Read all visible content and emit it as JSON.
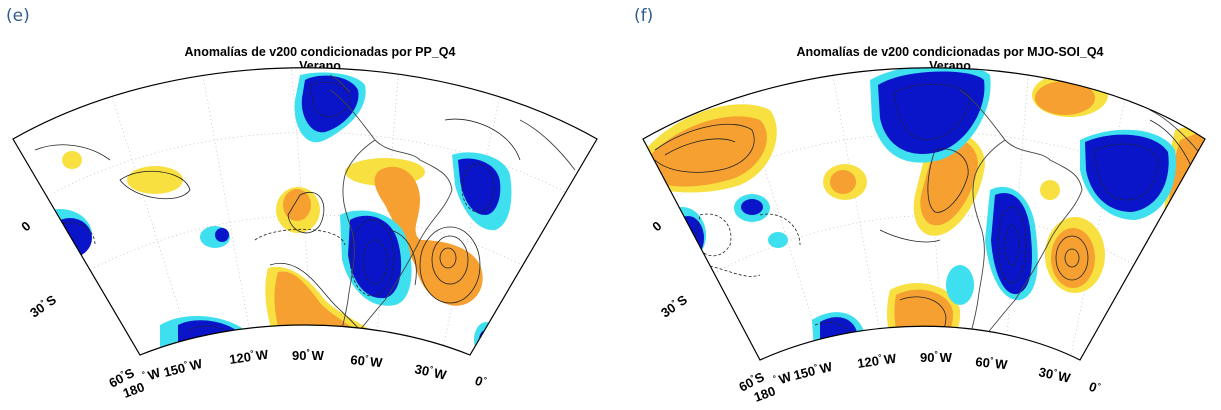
{
  "panels": [
    {
      "letter": "(e)",
      "title": "Anomalías de v200 condicionadas por PP_Q4",
      "subtitle": "Verano",
      "labels": {
        "lat_0": "0",
        "lat_30s": "30",
        "lat_30s_suffix": "S",
        "lat_60s": "60",
        "lat_60s_suffix": "S",
        "lon_180": "180",
        "lon_150": "150",
        "lon_120": "120",
        "lon_90": "90",
        "lon_60": "60",
        "lon_30": "30",
        "lon_0": "0",
        "w": "W",
        "deg": "°"
      }
    },
    {
      "letter": "(f)",
      "title": "Anomalías de v200 condicionadas por MJO-SOI_Q4",
      "subtitle": "Verano",
      "labels": {
        "lat_0": "0",
        "lat_30s": "30",
        "lat_30s_suffix": "S",
        "lat_60s": "60",
        "lat_60s_suffix": "S",
        "lon_180": "180",
        "lon_150": "150",
        "lon_120": "120",
        "lon_90": "90",
        "lon_60": "60",
        "lon_30": "30",
        "lon_0": "0",
        "w": "W",
        "deg": "°"
      }
    }
  ],
  "legend_colors": {
    "strong_negative": "#0a14c8",
    "weak_negative": "#3ee0f0",
    "strong_positive": "#f5a030",
    "weak_positive": "#f8e040"
  }
}
